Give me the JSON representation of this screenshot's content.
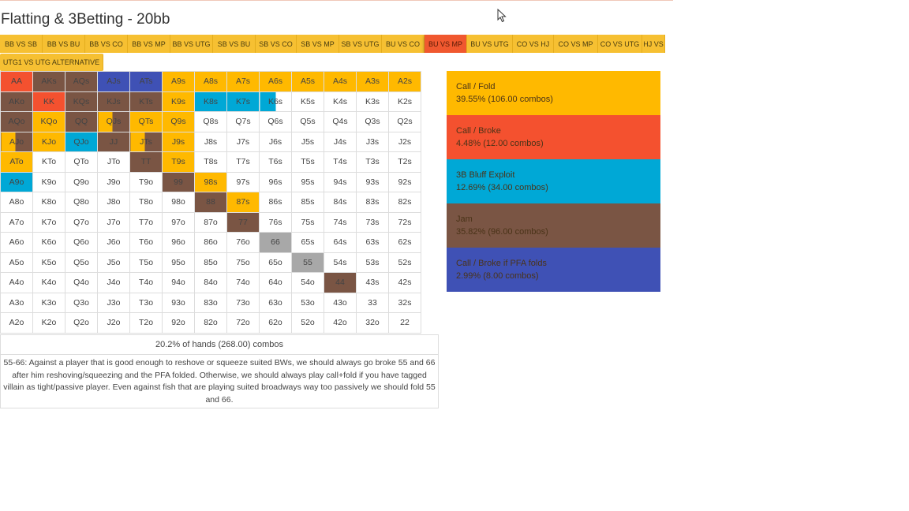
{
  "title": "Flatting & 3Betting - 20bb",
  "tabs_row1": [
    "BB VS SB",
    "BB VS BU",
    "BB VS CO",
    "BB VS MP",
    "BB VS UTG",
    "SB VS BU",
    "SB VS CO",
    "SB VS MP",
    "SB VS UTG",
    "BU VS CO",
    "BU VS MP",
    "BU VS UTG",
    "CO VS HJ",
    "CO VS MP",
    "CO VS UTG",
    "HJ VS"
  ],
  "active_tab": "BU VS MP",
  "tabs_row2": [
    "UTG1 VS UTG ALTERNATIVE"
  ],
  "grid": [
    [
      [
        "AA",
        "r"
      ],
      [
        "AKs",
        "b"
      ],
      [
        "AQs",
        "b"
      ],
      [
        "AJs",
        "n"
      ],
      [
        "ATs",
        "n"
      ],
      [
        "A9s",
        "y"
      ],
      [
        "A8s",
        "y"
      ],
      [
        "A7s",
        "y"
      ],
      [
        "A6s",
        "y"
      ],
      [
        "A5s",
        "y"
      ],
      [
        "A4s",
        "y"
      ],
      [
        "A3s",
        "y"
      ],
      [
        "A2s",
        "y"
      ]
    ],
    [
      [
        "AKo",
        "b"
      ],
      [
        "KK",
        "r"
      ],
      [
        "KQs",
        "b"
      ],
      [
        "KJs",
        "b"
      ],
      [
        "KTs",
        "b"
      ],
      [
        "K9s",
        "y"
      ],
      [
        "K8s",
        "c"
      ],
      [
        "K7s",
        "c"
      ],
      [
        "K6s",
        "bc"
      ],
      [
        "K5s",
        ""
      ],
      [
        "K4s",
        ""
      ],
      [
        "K3s",
        ""
      ],
      [
        "K2s",
        ""
      ]
    ],
    [
      [
        "AQo",
        "b"
      ],
      [
        "KQo",
        "y"
      ],
      [
        "QQ",
        "b"
      ],
      [
        "QJs",
        "yb"
      ],
      [
        "QTs",
        "y"
      ],
      [
        "Q9s",
        "y"
      ],
      [
        "Q8s",
        ""
      ],
      [
        "Q7s",
        ""
      ],
      [
        "Q6s",
        ""
      ],
      [
        "Q5s",
        ""
      ],
      [
        "Q4s",
        ""
      ],
      [
        "Q3s",
        ""
      ],
      [
        "Q2s",
        ""
      ]
    ],
    [
      [
        "AJo",
        "yb"
      ],
      [
        "KJo",
        "y"
      ],
      [
        "QJo",
        "c"
      ],
      [
        "JJ",
        "b"
      ],
      [
        "JTs",
        "yb"
      ],
      [
        "J9s",
        "y"
      ],
      [
        "J8s",
        ""
      ],
      [
        "J7s",
        ""
      ],
      [
        "J6s",
        ""
      ],
      [
        "J5s",
        ""
      ],
      [
        "J4s",
        ""
      ],
      [
        "J3s",
        ""
      ],
      [
        "J2s",
        ""
      ]
    ],
    [
      [
        "ATo",
        "y"
      ],
      [
        "KTo",
        ""
      ],
      [
        "QTo",
        ""
      ],
      [
        "JTo",
        ""
      ],
      [
        "TT",
        "b"
      ],
      [
        "T9s",
        "y"
      ],
      [
        "T8s",
        ""
      ],
      [
        "T7s",
        ""
      ],
      [
        "T6s",
        ""
      ],
      [
        "T5s",
        ""
      ],
      [
        "T4s",
        ""
      ],
      [
        "T3s",
        ""
      ],
      [
        "T2s",
        ""
      ]
    ],
    [
      [
        "A9o",
        "c"
      ],
      [
        "K9o",
        ""
      ],
      [
        "Q9o",
        ""
      ],
      [
        "J9o",
        ""
      ],
      [
        "T9o",
        ""
      ],
      [
        "99",
        "b"
      ],
      [
        "98s",
        "y"
      ],
      [
        "97s",
        ""
      ],
      [
        "96s",
        ""
      ],
      [
        "95s",
        ""
      ],
      [
        "94s",
        ""
      ],
      [
        "93s",
        ""
      ],
      [
        "92s",
        ""
      ]
    ],
    [
      [
        "A8o",
        ""
      ],
      [
        "K8o",
        ""
      ],
      [
        "Q8o",
        ""
      ],
      [
        "J8o",
        ""
      ],
      [
        "T8o",
        ""
      ],
      [
        "98o",
        ""
      ],
      [
        "88",
        "b"
      ],
      [
        "87s",
        "y"
      ],
      [
        "86s",
        ""
      ],
      [
        "85s",
        ""
      ],
      [
        "84s",
        ""
      ],
      [
        "83s",
        ""
      ],
      [
        "82s",
        ""
      ]
    ],
    [
      [
        "A7o",
        ""
      ],
      [
        "K7o",
        ""
      ],
      [
        "Q7o",
        ""
      ],
      [
        "J7o",
        ""
      ],
      [
        "T7o",
        ""
      ],
      [
        "97o",
        ""
      ],
      [
        "87o",
        ""
      ],
      [
        "77",
        "b"
      ],
      [
        "76s",
        ""
      ],
      [
        "75s",
        ""
      ],
      [
        "74s",
        ""
      ],
      [
        "73s",
        ""
      ],
      [
        "72s",
        ""
      ]
    ],
    [
      [
        "A6o",
        ""
      ],
      [
        "K6o",
        ""
      ],
      [
        "Q6o",
        ""
      ],
      [
        "J6o",
        ""
      ],
      [
        "T6o",
        ""
      ],
      [
        "96o",
        ""
      ],
      [
        "86o",
        ""
      ],
      [
        "76o",
        ""
      ],
      [
        "66",
        "g"
      ],
      [
        "65s",
        ""
      ],
      [
        "64s",
        ""
      ],
      [
        "63s",
        ""
      ],
      [
        "62s",
        ""
      ]
    ],
    [
      [
        "A5o",
        ""
      ],
      [
        "K5o",
        ""
      ],
      [
        "Q5o",
        ""
      ],
      [
        "J5o",
        ""
      ],
      [
        "T5o",
        ""
      ],
      [
        "95o",
        ""
      ],
      [
        "85o",
        ""
      ],
      [
        "75o",
        ""
      ],
      [
        "65o",
        ""
      ],
      [
        "55",
        "g"
      ],
      [
        "54s",
        ""
      ],
      [
        "53s",
        ""
      ],
      [
        "52s",
        ""
      ]
    ],
    [
      [
        "A4o",
        ""
      ],
      [
        "K4o",
        ""
      ],
      [
        "Q4o",
        ""
      ],
      [
        "J4o",
        ""
      ],
      [
        "T4o",
        ""
      ],
      [
        "94o",
        ""
      ],
      [
        "84o",
        ""
      ],
      [
        "74o",
        ""
      ],
      [
        "64o",
        ""
      ],
      [
        "54o",
        ""
      ],
      [
        "44",
        "b"
      ],
      [
        "43s",
        ""
      ],
      [
        "42s",
        ""
      ]
    ],
    [
      [
        "A3o",
        ""
      ],
      [
        "K3o",
        ""
      ],
      [
        "Q3o",
        ""
      ],
      [
        "J3o",
        ""
      ],
      [
        "T3o",
        ""
      ],
      [
        "93o",
        ""
      ],
      [
        "83o",
        ""
      ],
      [
        "73o",
        ""
      ],
      [
        "63o",
        ""
      ],
      [
        "53o",
        ""
      ],
      [
        "43o",
        ""
      ],
      [
        "33",
        ""
      ],
      [
        "32s",
        ""
      ]
    ],
    [
      [
        "A2o",
        ""
      ],
      [
        "K2o",
        ""
      ],
      [
        "Q2o",
        ""
      ],
      [
        "J2o",
        ""
      ],
      [
        "T2o",
        ""
      ],
      [
        "92o",
        ""
      ],
      [
        "82o",
        ""
      ],
      [
        "72o",
        ""
      ],
      [
        "62o",
        ""
      ],
      [
        "52o",
        ""
      ],
      [
        "42o",
        ""
      ],
      [
        "32o",
        ""
      ],
      [
        "22",
        ""
      ]
    ]
  ],
  "combos_summary": "20.2% of hands (268.00) combos",
  "note": "55-66: Against a player that is good enough to reshove or squeeze suited BWs, we should always go broke 55 and 66 after him reshoving/squeezing and the PFA folded.  Otherwise, we should always play call+fold if you have tagged villain as tight/passive player. Even against fish that are playing suited broadways way too passively we should fold 55 and 66.",
  "legend": [
    {
      "name": "Call / Fold",
      "stat": "39.55% (106.00 combos)",
      "color": "#ffb900"
    },
    {
      "name": "Call / Broke",
      "stat": "4.48% (12.00 combos)",
      "color": "#f4512f"
    },
    {
      "name": "3B Bluff Exploit",
      "stat": "12.69% (34.00 combos)",
      "color": "#00a8d6"
    },
    {
      "name": "Jam",
      "stat": "35.82% (96.00 combos)",
      "color": "#7a5544"
    },
    {
      "name": "Call / Broke if PFA folds",
      "stat": "2.99% (8.00 combos)",
      "color": "#3f51b5"
    }
  ]
}
